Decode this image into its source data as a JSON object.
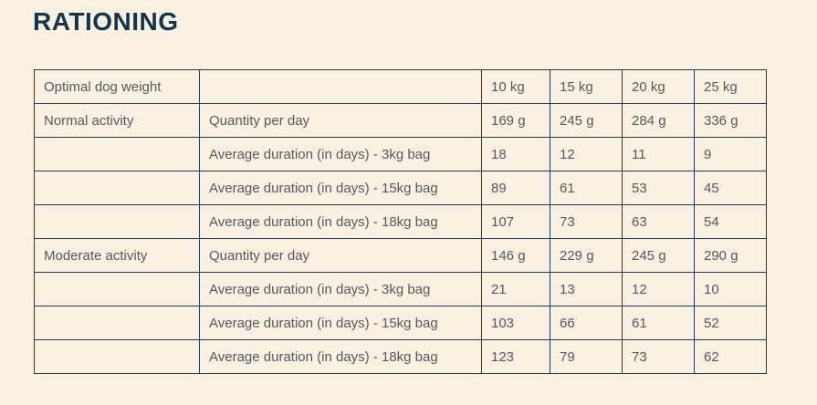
{
  "section": {
    "title": "RATIONING"
  },
  "theme": {
    "page_background": "#faf1e3",
    "title_color": "#14344e",
    "table_border_color": "#1e3c55",
    "cell_text_color": "#56575c"
  },
  "table": {
    "weight_columns": [
      "10 kg",
      "15 kg",
      "20 kg",
      "25 kg"
    ],
    "rows": [
      {
        "col1": "Optimal dog weight",
        "col2": "",
        "values": [
          "10 kg",
          "15 kg",
          "20 kg",
          "25 kg"
        ]
      },
      {
        "col1": "Normal activity",
        "col2": "Quantity per day",
        "values": [
          "169 g",
          "245 g",
          "284 g",
          "336 g"
        ]
      },
      {
        "col1": "",
        "col2": "Average duration (in days) - 3kg bag",
        "values": [
          "18",
          "12",
          "11",
          "9"
        ]
      },
      {
        "col1": "",
        "col2": "Average duration (in days) - 15kg bag",
        "values": [
          "89",
          "61",
          "53",
          "45"
        ]
      },
      {
        "col1": "",
        "col2": "Average duration (in days) - 18kg bag",
        "values": [
          "107",
          "73",
          "63",
          "54"
        ]
      },
      {
        "col1": "Moderate activity",
        "col2": "Quantity per day",
        "values": [
          "146 g",
          "229 g",
          "245 g",
          "290 g"
        ]
      },
      {
        "col1": "",
        "col2": "Average duration (in days) - 3kg bag",
        "values": [
          "21",
          "13",
          "12",
          "10"
        ]
      },
      {
        "col1": "",
        "col2": "Average duration (in days) - 15kg bag",
        "values": [
          "103",
          "66",
          "61",
          "52"
        ]
      },
      {
        "col1": "",
        "col2": "Average duration (in days) - 18kg bag",
        "values": [
          "123",
          "79",
          "73",
          "62"
        ]
      }
    ]
  }
}
